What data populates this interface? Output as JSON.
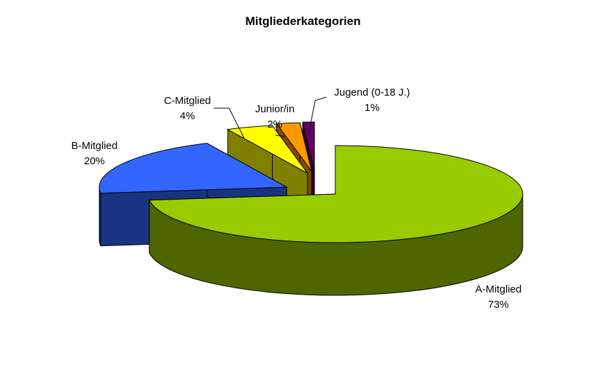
{
  "chart_data": {
    "type": "pie",
    "title": "Mitgliederkategorien",
    "three_d": true,
    "slices": [
      {
        "name": "A-Mitglied",
        "value": 73,
        "label": "73%",
        "color": "#99CC00",
        "side_color": "#4D6600"
      },
      {
        "name": "B-Mitglied",
        "value": 20,
        "label": "20%",
        "color": "#3366FF",
        "side_color": "#1A3380"
      },
      {
        "name": "C-Mitglied",
        "value": 4,
        "label": "4%",
        "color": "#FFFF00",
        "side_color": "#808000"
      },
      {
        "name": "Junior/in",
        "value": 2,
        "label": "2%",
        "color": "#FF9900",
        "side_color": "#804C00"
      },
      {
        "name": "Jugend (0-18 J.)",
        "value": 1,
        "label": "1%",
        "color": "#660066",
        "side_color": "#330033"
      }
    ],
    "legend": "none",
    "data_labels": "category name and percentage"
  }
}
